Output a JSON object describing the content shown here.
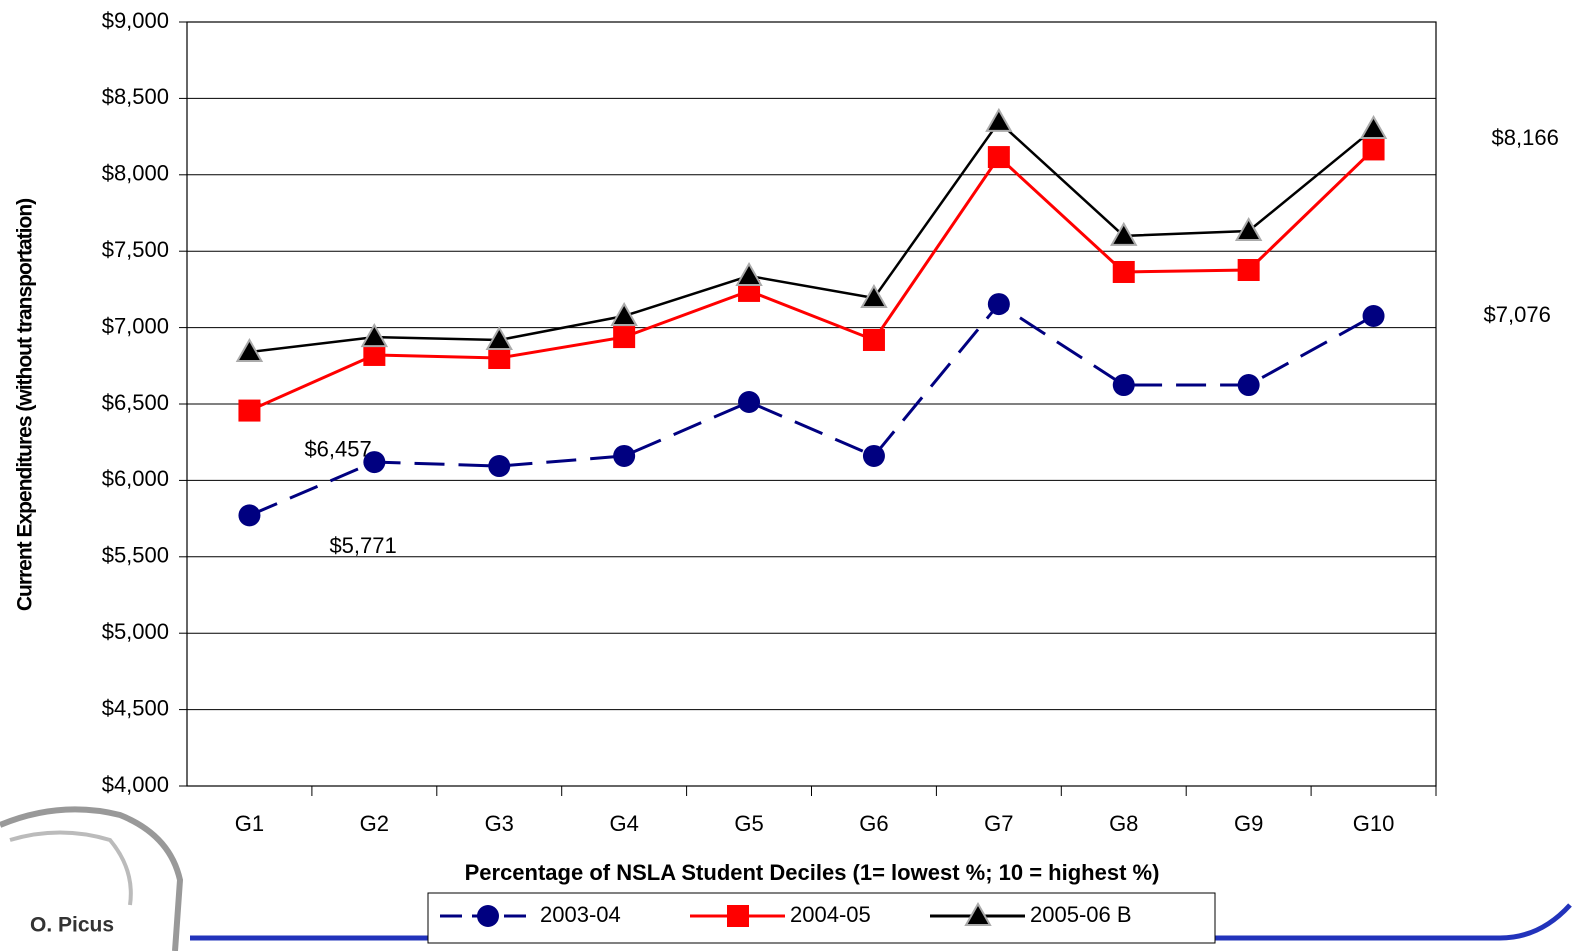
{
  "chart_data": {
    "type": "line",
    "y_axis_label": "Current Expenditures (without transportation)",
    "x_axis_label": "Percentage of NSLA Student Deciles (1= lowest %; 10 = highest %)",
    "categories": [
      "G1",
      "G2",
      "G3",
      "G4",
      "G5",
      "G6",
      "G7",
      "G8",
      "G9",
      "G10"
    ],
    "series": [
      {
        "name": "2003-04",
        "color": "#000080",
        "marker": "circle",
        "dashed": true,
        "values": [
          5771,
          6120,
          6094,
          6160,
          6513,
          6160,
          7154,
          6624,
          6624,
          7076
        ],
        "value_labels": [
          "$5,771",
          null,
          null,
          null,
          null,
          null,
          null,
          null,
          null,
          "$7,076"
        ]
      },
      {
        "name": "2004-05",
        "color": "#ff0000",
        "marker": "square",
        "dashed": false,
        "values": [
          6457,
          6821,
          6801,
          6938,
          7240,
          6919,
          8116,
          7364,
          7377,
          8166
        ],
        "value_labels": [
          "$6,457",
          null,
          null,
          null,
          null,
          null,
          null,
          null,
          null,
          "$8,166"
        ]
      },
      {
        "name": "2005-06 B",
        "color": "#000000",
        "marker": "triangle",
        "dashed": false,
        "values": [
          6840,
          6938,
          6919,
          7076,
          7338,
          7194,
          8346,
          7600,
          7632,
          8300
        ]
      }
    ],
    "ylim": [
      4000,
      9000
    ],
    "yticks": [
      {
        "value": 4000,
        "label": "$4,000"
      },
      {
        "value": 4500,
        "label": "$4,500"
      },
      {
        "value": 5000,
        "label": "$5,000"
      },
      {
        "value": 5500,
        "label": "$5,500"
      },
      {
        "value": 6000,
        "label": "$6,000"
      },
      {
        "value": 6500,
        "label": "$6,500"
      },
      {
        "value": 7000,
        "label": "$7,000"
      },
      {
        "value": 7500,
        "label": "$7,500"
      },
      {
        "value": 8000,
        "label": "$8,000"
      },
      {
        "value": 8500,
        "label": "$8,500"
      },
      {
        "value": 9000,
        "label": "$9,000"
      }
    ],
    "grid": true,
    "legend": "bottom"
  },
  "logo_text": "O. Picus"
}
